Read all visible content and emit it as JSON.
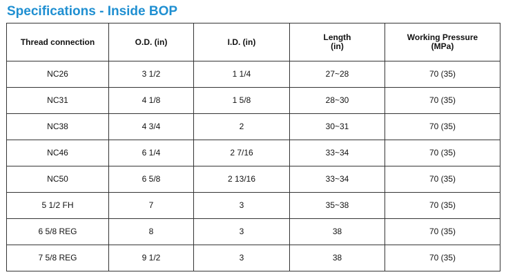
{
  "title": "Specifications - Inside BOP",
  "headers": {
    "thread": "Thread connection",
    "od": "O.D. (in)",
    "id": "I.D. (in)",
    "length_line1": "Length",
    "length_line2": "(in)",
    "pressure_line1": "Working Pressure",
    "pressure_line2": "(MPa)"
  },
  "rows": [
    {
      "thread": "NC26",
      "od": "3 1/2",
      "id": "1 1/4",
      "length": "27~28",
      "pressure": "70 (35)"
    },
    {
      "thread": "NC31",
      "od": "4 1/8",
      "id": "1 5/8",
      "length": "28~30",
      "pressure": "70 (35)"
    },
    {
      "thread": "NC38",
      "od": "4 3/4",
      "id": "2",
      "length": "30~31",
      "pressure": "70 (35)"
    },
    {
      "thread": "NC46",
      "od": "6 1/4",
      "id": "2 7/16",
      "length": "33~34",
      "pressure": "70 (35)"
    },
    {
      "thread": "NC50",
      "od": "6 5/8",
      "id": "2 13/16",
      "length": "33~34",
      "pressure": "70 (35)"
    },
    {
      "thread": "5 1/2 FH",
      "od": "7",
      "id": "3",
      "length": "35~38",
      "pressure": "70 (35)"
    },
    {
      "thread": "6 5/8 REG",
      "od": "8",
      "id": "3",
      "length": "38",
      "pressure": "70 (35)"
    },
    {
      "thread": "7 5/8 REG",
      "od": "9 1/2",
      "id": "3",
      "length": "38",
      "pressure": "70 (35)"
    }
  ],
  "colors": {
    "title": "#1f8fd1",
    "border": "#333333",
    "text": "#111111"
  }
}
